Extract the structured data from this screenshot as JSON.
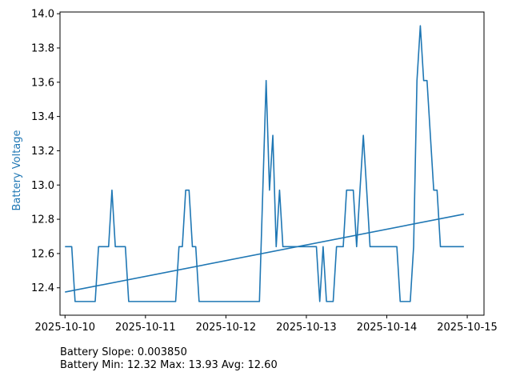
{
  "chart_data": {
    "type": "line",
    "title": "",
    "xlabel": "",
    "ylabel": "Battery Voltage",
    "xlim": [
      "2025-10-09T22:30",
      "2025-10-15T05:00"
    ],
    "ylim": [
      12.24,
      14.01
    ],
    "xticks": [
      "2025-10-10",
      "2025-10-11",
      "2025-10-12",
      "2025-10-13",
      "2025-10-14",
      "2025-10-15"
    ],
    "yticks": [
      "12.4",
      "12.6",
      "12.8",
      "13.0",
      "13.2",
      "13.4",
      "13.6",
      "13.8",
      "14.0"
    ],
    "grid": false,
    "colors": {
      "series": "#1f77b4",
      "ylabel": "#1f77b4"
    },
    "series": [
      {
        "values": [
          [
            "2025-10-10T00:00",
            12.64
          ],
          [
            "2025-10-10T02:00",
            12.64
          ],
          [
            "2025-10-10T03:00",
            12.32
          ],
          [
            "2025-10-10T09:00",
            12.32
          ],
          [
            "2025-10-10T10:00",
            12.64
          ],
          [
            "2025-10-10T13:00",
            12.64
          ],
          [
            "2025-10-10T14:00",
            12.97
          ],
          [
            "2025-10-10T15:00",
            12.64
          ],
          [
            "2025-10-10T18:00",
            12.64
          ],
          [
            "2025-10-10T19:00",
            12.32
          ],
          [
            "2025-10-11T09:00",
            12.32
          ],
          [
            "2025-10-11T10:00",
            12.64
          ],
          [
            "2025-10-11T11:00",
            12.64
          ],
          [
            "2025-10-11T12:00",
            12.97
          ],
          [
            "2025-10-11T13:00",
            12.97
          ],
          [
            "2025-10-11T14:00",
            12.64
          ],
          [
            "2025-10-11T15:00",
            12.64
          ],
          [
            "2025-10-11T16:00",
            12.32
          ],
          [
            "2025-10-12T10:00",
            12.32
          ],
          [
            "2025-10-12T12:00",
            13.61
          ],
          [
            "2025-10-12T13:00",
            12.97
          ],
          [
            "2025-10-12T14:00",
            13.29
          ],
          [
            "2025-10-12T15:00",
            12.64
          ],
          [
            "2025-10-12T16:00",
            12.97
          ],
          [
            "2025-10-12T17:00",
            12.64
          ],
          [
            "2025-10-13T03:00",
            12.64
          ],
          [
            "2025-10-13T04:00",
            12.32
          ],
          [
            "2025-10-13T05:00",
            12.64
          ],
          [
            "2025-10-13T06:00",
            12.32
          ],
          [
            "2025-10-13T08:00",
            12.32
          ],
          [
            "2025-10-13T09:00",
            12.64
          ],
          [
            "2025-10-13T11:00",
            12.64
          ],
          [
            "2025-10-13T12:00",
            12.97
          ],
          [
            "2025-10-13T14:00",
            12.97
          ],
          [
            "2025-10-13T15:00",
            12.64
          ],
          [
            "2025-10-13T16:00",
            12.97
          ],
          [
            "2025-10-13T17:00",
            13.29
          ],
          [
            "2025-10-13T18:00",
            12.97
          ],
          [
            "2025-10-13T19:00",
            12.64
          ],
          [
            "2025-10-14T03:00",
            12.64
          ],
          [
            "2025-10-14T04:00",
            12.32
          ],
          [
            "2025-10-14T07:00",
            12.32
          ],
          [
            "2025-10-14T08:00",
            12.64
          ],
          [
            "2025-10-14T09:00",
            13.61
          ],
          [
            "2025-10-14T10:00",
            13.93
          ],
          [
            "2025-10-14T11:00",
            13.61
          ],
          [
            "2025-10-14T12:00",
            13.61
          ],
          [
            "2025-10-14T13:00",
            13.29
          ],
          [
            "2025-10-14T14:00",
            12.97
          ],
          [
            "2025-10-14T15:00",
            12.97
          ],
          [
            "2025-10-14T16:00",
            12.64
          ],
          [
            "2025-10-14T23:00",
            12.64
          ]
        ]
      },
      {
        "values": [
          [
            "2025-10-10T00:00",
            12.375
          ],
          [
            "2025-10-14T23:00",
            12.83
          ]
        ]
      }
    ]
  },
  "stats": {
    "slope_text": "Battery Slope: 0.003850",
    "minmax_text": "Battery Min: 12.32 Max: 13.93 Avg: 12.60"
  }
}
